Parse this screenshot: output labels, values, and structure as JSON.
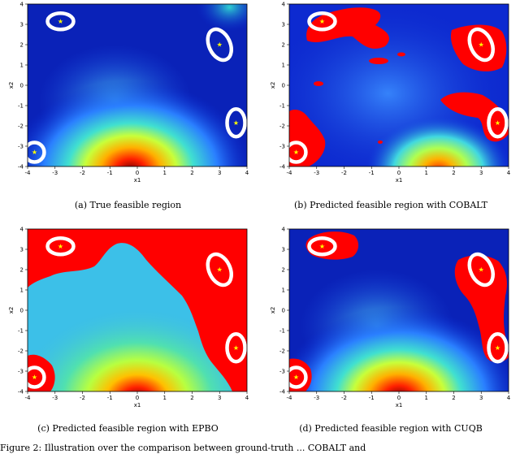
{
  "figure": {
    "caption_fragment": "Figure 2: Illustration over the comparison between ground-truth ... COBALT and"
  },
  "colors": {
    "infeasible": "#ff0000",
    "constraint_ring": "#ffffff",
    "optimum_marker": "#ffff00"
  },
  "chart_data": [
    {
      "type": "heatmap",
      "caption": "(a) True feasible region",
      "xlabel": "x1",
      "ylabel": "x2",
      "xlim": [
        -4,
        4
      ],
      "ylim": [
        -4,
        4
      ],
      "xticks": [
        -4,
        -3,
        -2,
        -1,
        0,
        1,
        2,
        3,
        4
      ],
      "yticks": [
        -4,
        -3,
        -2,
        -1,
        0,
        1,
        2,
        3,
        4
      ],
      "optima": [
        [
          -2.8,
          3.15
        ],
        [
          3.0,
          2.0
        ],
        [
          3.6,
          -1.85
        ],
        [
          -3.75,
          -3.3
        ]
      ]
    },
    {
      "type": "heatmap",
      "caption": "(b) Predicted feasible region with COBALT",
      "xlabel": "x1",
      "ylabel": "x2",
      "xlim": [
        -4,
        4
      ],
      "ylim": [
        -4,
        4
      ],
      "xticks": [
        -4,
        -3,
        -2,
        -1,
        0,
        1,
        2,
        3,
        4
      ],
      "yticks": [
        -4,
        -3,
        -2,
        -1,
        0,
        1,
        2,
        3,
        4
      ],
      "optima": [
        [
          -2.8,
          3.15
        ],
        [
          3.0,
          2.0
        ],
        [
          3.6,
          -1.85
        ],
        [
          -3.75,
          -3.3
        ]
      ]
    },
    {
      "type": "heatmap",
      "caption": "(c) Predicted feasible region with EPBO",
      "xlabel": "x1",
      "ylabel": "x2",
      "xlim": [
        -4,
        4
      ],
      "ylim": [
        -4,
        4
      ],
      "xticks": [
        -4,
        -3,
        -2,
        -1,
        0,
        1,
        2,
        3,
        4
      ],
      "yticks": [
        -4,
        -3,
        -2,
        -1,
        0,
        1,
        2,
        3,
        4
      ],
      "optima": [
        [
          -2.8,
          3.15
        ],
        [
          3.0,
          2.0
        ],
        [
          3.6,
          -1.85
        ],
        [
          -3.75,
          -3.3
        ]
      ]
    },
    {
      "type": "heatmap",
      "caption": "(d) Predicted feasible region with CUQB",
      "xlabel": "x1",
      "ylabel": "x2",
      "xlim": [
        -4,
        4
      ],
      "ylim": [
        -4,
        4
      ],
      "xticks": [
        -4,
        -3,
        -2,
        -1,
        0,
        1,
        2,
        3,
        4
      ],
      "yticks": [
        -4,
        -3,
        -2,
        -1,
        0,
        1,
        2,
        3,
        4
      ],
      "optima": [
        [
          -2.8,
          3.15
        ],
        [
          3.0,
          2.0
        ],
        [
          3.6,
          -1.85
        ],
        [
          -3.75,
          -3.3
        ]
      ]
    }
  ]
}
